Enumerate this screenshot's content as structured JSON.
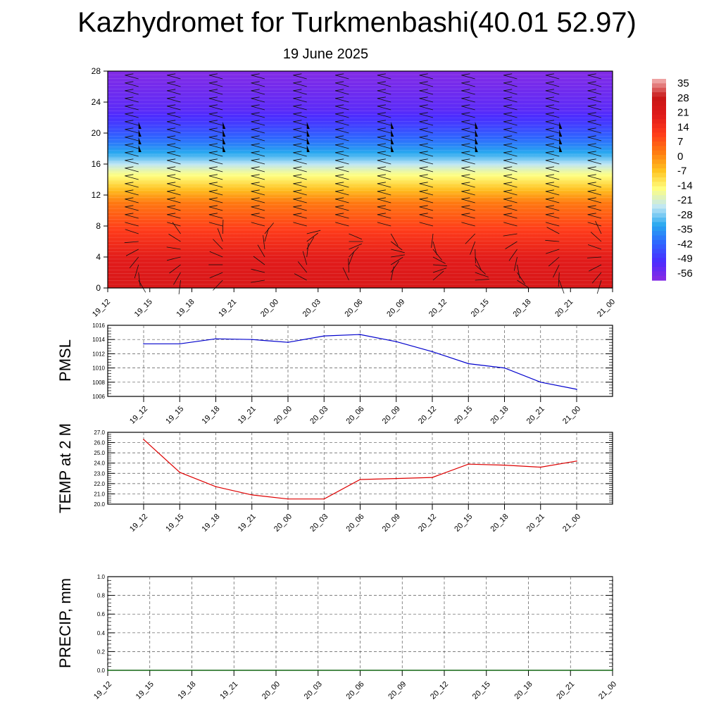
{
  "header": {
    "title": "Kazhydromet for Turkmenbashi(40.01 52.97)",
    "subtitle": "19 June 2025"
  },
  "chart_data": [
    {
      "type": "heatmap",
      "title": "",
      "x_ticks": [
        "19_12",
        "19_15",
        "19_18",
        "19_21",
        "20_00",
        "20_03",
        "20_06",
        "20_09",
        "20_12",
        "20_15",
        "20_18",
        "20_21",
        "21_00"
      ],
      "ylim": [
        0,
        28
      ],
      "y_ticks": [
        "0",
        "4",
        "8",
        "12",
        "16",
        "20",
        "24",
        "28"
      ],
      "colorbar": {
        "labels": [
          "35",
          "28",
          "21",
          "14",
          "7",
          "0",
          "-7",
          "-14",
          "-21",
          "-28",
          "-35",
          "-42",
          "-49",
          "-56"
        ],
        "range": [
          -63,
          42
        ],
        "stops": [
          "#8a2be2",
          "#4b2bff",
          "#2f64ff",
          "#27a8f0",
          "#bfe6f5",
          "#ffff80",
          "#ffc21f",
          "#ff7a10",
          "#ff3b1a",
          "#e01a1a",
          "#c81616",
          "#f3b5b5"
        ]
      },
      "temperature_profile": [
        {
          "h": 0,
          "t": 26
        },
        {
          "h": 4,
          "t": 22
        },
        {
          "h": 8,
          "t": 12
        },
        {
          "h": 11,
          "t": 4
        },
        {
          "h": 13.5,
          "t": -10
        },
        {
          "h": 15,
          "t": -18
        },
        {
          "h": 17,
          "t": -32
        },
        {
          "h": 19,
          "t": -42
        },
        {
          "h": 21,
          "t": -50
        },
        {
          "h": 23,
          "t": -56
        },
        {
          "h": 28,
          "t": -62
        }
      ],
      "wind_barbs": "present"
    },
    {
      "type": "line",
      "ylabel": "PMSL",
      "x_ticks": [
        "19_12",
        "19_15",
        "19_18",
        "19_21",
        "20_00",
        "20_03",
        "20_06",
        "20_09",
        "20_12",
        "20_15",
        "20_18",
        "20_21",
        "21_00"
      ],
      "y_ticks": [
        "1006",
        "1008",
        "1010",
        "1012",
        "1014",
        "1016"
      ],
      "ylim": [
        1006,
        1016
      ],
      "series": [
        {
          "values": [
            1013.4,
            1013.4,
            1014.1,
            1014.0,
            1013.6,
            1014.5,
            1014.7,
            1013.7,
            1012.3,
            1010.6,
            1010.0,
            1008.0,
            1007.0
          ],
          "color": "#0000cc"
        }
      ]
    },
    {
      "type": "line",
      "ylabel": "TEMP at 2 M",
      "x_ticks": [
        "19_12",
        "19_15",
        "19_18",
        "19_21",
        "20_00",
        "20_03",
        "20_06",
        "20_09",
        "20_12",
        "20_15",
        "20_18",
        "20_21",
        "21_00"
      ],
      "y_ticks": [
        "20.0",
        "21.0",
        "22.0",
        "23.0",
        "24.0",
        "25.0",
        "26.0",
        "27.0"
      ],
      "ylim": [
        20,
        27
      ],
      "series": [
        {
          "values": [
            26.3,
            23.1,
            21.7,
            20.9,
            20.5,
            20.5,
            22.4,
            22.5,
            22.6,
            23.9,
            23.8,
            23.6,
            24.2
          ],
          "color": "#dd0000"
        }
      ]
    },
    {
      "type": "line",
      "ylabel": "PRECIP, mm",
      "x_ticks": [
        "19_12",
        "19_15",
        "19_18",
        "19_21",
        "20_00",
        "20_03",
        "20_06",
        "20_09",
        "20_12",
        "20_15",
        "20_18",
        "20_21",
        "21_00"
      ],
      "y_ticks": [
        "0.0",
        "0.2",
        "0.4",
        "0.6",
        "0.8",
        "1.0"
      ],
      "ylim": [
        0,
        1
      ],
      "series": [
        {
          "values": [
            0,
            0,
            0,
            0,
            0,
            0,
            0,
            0,
            0,
            0,
            0,
            0,
            0
          ],
          "color": "#006400"
        }
      ]
    }
  ]
}
